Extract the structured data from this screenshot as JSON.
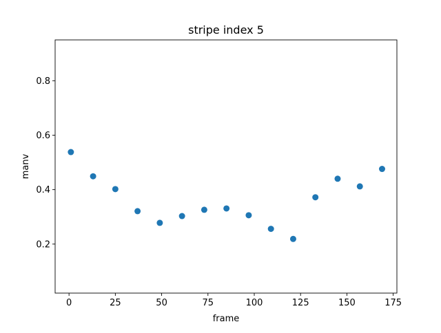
{
  "chart_data": {
    "type": "scatter",
    "title": "stripe index 5",
    "xlabel": "frame",
    "ylabel": "manv",
    "xlim": [
      -7.5,
      177
    ],
    "ylim": [
      0.02,
      0.95
    ],
    "xticks": [
      0,
      25,
      50,
      75,
      100,
      125,
      150,
      175
    ],
    "yticks": [
      0.2,
      0.4,
      0.6,
      0.8
    ],
    "xtick_labels": [
      "0",
      "25",
      "50",
      "75",
      "100",
      "125",
      "150",
      "175"
    ],
    "ytick_labels": [
      "0.2",
      "0.4",
      "0.6",
      "0.8"
    ],
    "grid": false,
    "legend": false,
    "marker_color": "#1f77b4",
    "x": [
      1,
      13,
      25,
      37,
      49,
      61,
      73,
      85,
      97,
      109,
      121,
      133,
      145,
      157,
      169
    ],
    "y": [
      0.538,
      0.449,
      0.402,
      0.321,
      0.278,
      0.303,
      0.326,
      0.331,
      0.306,
      0.256,
      0.219,
      0.372,
      0.44,
      0.412,
      0.476
    ]
  }
}
